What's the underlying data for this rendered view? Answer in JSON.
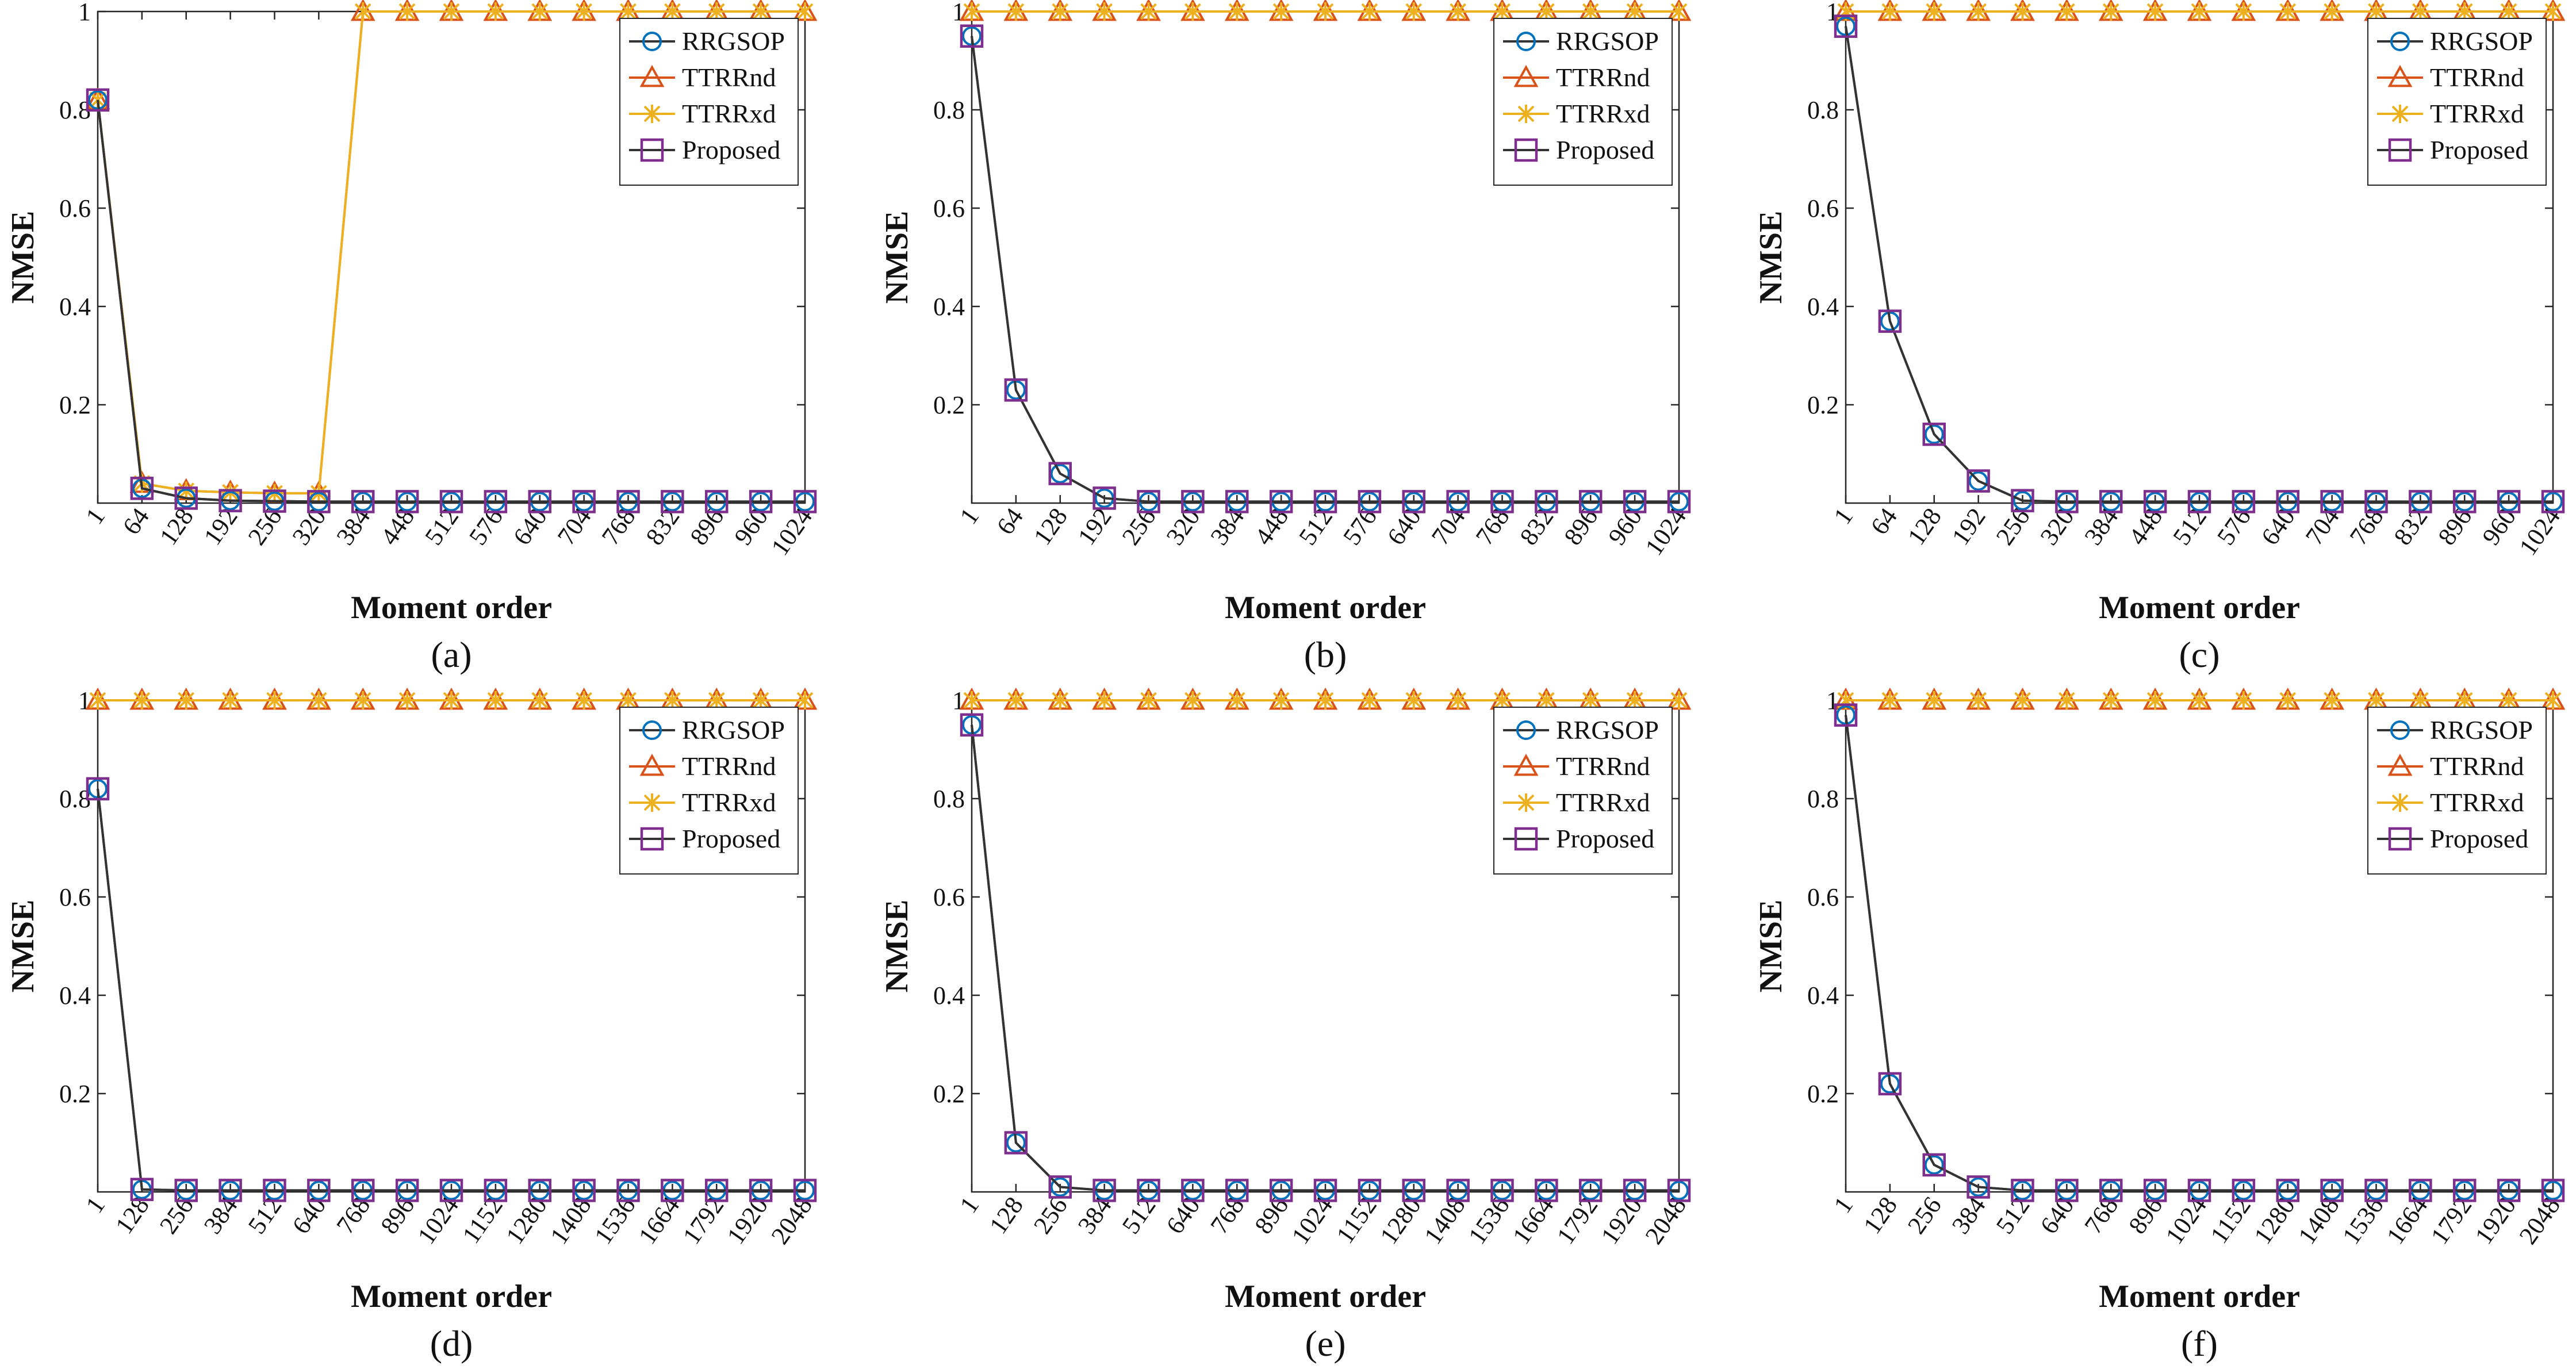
{
  "figure": {
    "series_styles": [
      {
        "name": "RRGSOP",
        "color": "#0072BD",
        "marker": "circle"
      },
      {
        "name": "TTRRnd",
        "color": "#D95319",
        "marker": "triangle"
      },
      {
        "name": "TTRRxd",
        "color": "#EDB120",
        "marker": "x"
      },
      {
        "name": "Proposed",
        "color": "#7E2F8E",
        "marker": "square"
      }
    ],
    "line_color": "#333333"
  },
  "chart_data": [
    {
      "panel_label": "(a)",
      "type": "line",
      "xlabel": "Moment order",
      "ylabel": "NMSE",
      "ylim": [
        0,
        1
      ],
      "yticks": [
        "0.2",
        "0.4",
        "0.6",
        "0.8",
        "1"
      ],
      "x": [
        "1",
        "64",
        "128",
        "192",
        "256",
        "320",
        "384",
        "448",
        "512",
        "576",
        "640",
        "704",
        "768",
        "832",
        "896",
        "960",
        "1024"
      ],
      "legend": "top-right",
      "series": [
        {
          "name": "RRGSOP",
          "values": [
            0.82,
            0.03,
            0.01,
            0.005,
            0.004,
            0.003,
            0.003,
            0.003,
            0.003,
            0.003,
            0.003,
            0.003,
            0.003,
            0.003,
            0.003,
            0.003,
            0.003
          ]
        },
        {
          "name": "TTRRnd",
          "values": [
            0.82,
            0.04,
            0.025,
            0.022,
            0.02,
            0.02,
            1,
            1,
            1,
            1,
            1,
            1,
            1,
            1,
            1,
            1,
            1
          ]
        },
        {
          "name": "TTRRxd",
          "values": [
            0.82,
            0.04,
            0.025,
            0.022,
            0.02,
            0.02,
            1,
            1,
            1,
            1,
            1,
            1,
            1,
            1,
            1,
            1,
            1
          ]
        },
        {
          "name": "Proposed",
          "values": [
            0.82,
            0.03,
            0.01,
            0.005,
            0.004,
            0.003,
            0.003,
            0.003,
            0.003,
            0.003,
            0.003,
            0.003,
            0.003,
            0.003,
            0.003,
            0.003,
            0.003
          ]
        }
      ]
    },
    {
      "panel_label": "(b)",
      "type": "line",
      "xlabel": "Moment order",
      "ylabel": "NMSE",
      "ylim": [
        0,
        1
      ],
      "yticks": [
        "0.2",
        "0.4",
        "0.6",
        "0.8",
        "1"
      ],
      "x": [
        "1",
        "64",
        "128",
        "192",
        "256",
        "320",
        "384",
        "448",
        "512",
        "576",
        "640",
        "704",
        "768",
        "832",
        "896",
        "960",
        "1024"
      ],
      "legend": "top-right",
      "series": [
        {
          "name": "RRGSOP",
          "values": [
            0.95,
            0.23,
            0.06,
            0.01,
            0.003,
            0.003,
            0.003,
            0.003,
            0.003,
            0.003,
            0.003,
            0.003,
            0.003,
            0.003,
            0.003,
            0.003,
            0.003
          ]
        },
        {
          "name": "TTRRnd",
          "values": [
            1,
            1,
            1,
            1,
            1,
            1,
            1,
            1,
            1,
            1,
            1,
            1,
            1,
            1,
            1,
            1,
            1
          ]
        },
        {
          "name": "TTRRxd",
          "values": [
            1,
            1,
            1,
            1,
            1,
            1,
            1,
            1,
            1,
            1,
            1,
            1,
            1,
            1,
            1,
            1,
            1
          ]
        },
        {
          "name": "Proposed",
          "values": [
            0.95,
            0.23,
            0.06,
            0.01,
            0.003,
            0.003,
            0.003,
            0.003,
            0.003,
            0.003,
            0.003,
            0.003,
            0.003,
            0.003,
            0.003,
            0.003,
            0.003
          ]
        }
      ]
    },
    {
      "panel_label": "(c)",
      "type": "line",
      "xlabel": "Moment order",
      "ylabel": "NMSE",
      "ylim": [
        0,
        1
      ],
      "yticks": [
        "0.2",
        "0.4",
        "0.6",
        "0.8",
        "1"
      ],
      "x": [
        "1",
        "64",
        "128",
        "192",
        "256",
        "320",
        "384",
        "448",
        "512",
        "576",
        "640",
        "704",
        "768",
        "832",
        "896",
        "960",
        "1024"
      ],
      "legend": "top-right",
      "series": [
        {
          "name": "RRGSOP",
          "values": [
            0.97,
            0.37,
            0.14,
            0.045,
            0.005,
            0.003,
            0.003,
            0.003,
            0.003,
            0.003,
            0.003,
            0.003,
            0.003,
            0.003,
            0.003,
            0.003,
            0.003
          ]
        },
        {
          "name": "TTRRnd",
          "values": [
            1,
            1,
            1,
            1,
            1,
            1,
            1,
            1,
            1,
            1,
            1,
            1,
            1,
            1,
            1,
            1,
            1
          ]
        },
        {
          "name": "TTRRxd",
          "values": [
            1,
            1,
            1,
            1,
            1,
            1,
            1,
            1,
            1,
            1,
            1,
            1,
            1,
            1,
            1,
            1,
            1
          ]
        },
        {
          "name": "Proposed",
          "values": [
            0.97,
            0.37,
            0.14,
            0.045,
            0.005,
            0.003,
            0.003,
            0.003,
            0.003,
            0.003,
            0.003,
            0.003,
            0.003,
            0.003,
            0.003,
            0.003,
            0.003
          ]
        }
      ]
    },
    {
      "panel_label": "(d)",
      "type": "line",
      "xlabel": "Moment order",
      "ylabel": "NMSE",
      "ylim": [
        0,
        1
      ],
      "yticks": [
        "0.2",
        "0.4",
        "0.6",
        "0.8",
        "1"
      ],
      "x": [
        "1",
        "128",
        "256",
        "384",
        "512",
        "640",
        "768",
        "896",
        "1024",
        "1152",
        "1280",
        "1408",
        "1536",
        "1664",
        "1792",
        "1920",
        "2048"
      ],
      "legend": "top-right",
      "series": [
        {
          "name": "RRGSOP",
          "values": [
            0.82,
            0.005,
            0.003,
            0.003,
            0.003,
            0.003,
            0.003,
            0.003,
            0.003,
            0.003,
            0.003,
            0.003,
            0.003,
            0.003,
            0.003,
            0.003,
            0.003
          ]
        },
        {
          "name": "TTRRnd",
          "values": [
            1,
            1,
            1,
            1,
            1,
            1,
            1,
            1,
            1,
            1,
            1,
            1,
            1,
            1,
            1,
            1,
            1
          ]
        },
        {
          "name": "TTRRxd",
          "values": [
            1,
            1,
            1,
            1,
            1,
            1,
            1,
            1,
            1,
            1,
            1,
            1,
            1,
            1,
            1,
            1,
            1
          ]
        },
        {
          "name": "Proposed",
          "values": [
            0.82,
            0.005,
            0.003,
            0.003,
            0.003,
            0.003,
            0.003,
            0.003,
            0.003,
            0.003,
            0.003,
            0.003,
            0.003,
            0.003,
            0.003,
            0.003,
            0.003
          ]
        }
      ]
    },
    {
      "panel_label": "(e)",
      "type": "line",
      "xlabel": "Moment order",
      "ylabel": "NMSE",
      "ylim": [
        0,
        1
      ],
      "yticks": [
        "0.2",
        "0.4",
        "0.6",
        "0.8",
        "1"
      ],
      "x": [
        "1",
        "128",
        "256",
        "384",
        "512",
        "640",
        "768",
        "896",
        "1024",
        "1152",
        "1280",
        "1408",
        "1536",
        "1664",
        "1792",
        "1920",
        "2048"
      ],
      "legend": "top-right",
      "series": [
        {
          "name": "RRGSOP",
          "values": [
            0.95,
            0.1,
            0.01,
            0.003,
            0.003,
            0.003,
            0.003,
            0.003,
            0.003,
            0.003,
            0.003,
            0.003,
            0.003,
            0.003,
            0.003,
            0.003,
            0.003
          ]
        },
        {
          "name": "TTRRnd",
          "values": [
            1,
            1,
            1,
            1,
            1,
            1,
            1,
            1,
            1,
            1,
            1,
            1,
            1,
            1,
            1,
            1,
            1
          ]
        },
        {
          "name": "TTRRxd",
          "values": [
            1,
            1,
            1,
            1,
            1,
            1,
            1,
            1,
            1,
            1,
            1,
            1,
            1,
            1,
            1,
            1,
            1
          ]
        },
        {
          "name": "Proposed",
          "values": [
            0.95,
            0.1,
            0.01,
            0.003,
            0.003,
            0.003,
            0.003,
            0.003,
            0.003,
            0.003,
            0.003,
            0.003,
            0.003,
            0.003,
            0.003,
            0.003,
            0.003
          ]
        }
      ]
    },
    {
      "panel_label": "(f)",
      "type": "line",
      "xlabel": "Moment order",
      "ylabel": "NMSE",
      "ylim": [
        0,
        1
      ],
      "yticks": [
        "0.2",
        "0.4",
        "0.6",
        "0.8",
        "1"
      ],
      "x": [
        "1",
        "128",
        "256",
        "384",
        "512",
        "640",
        "768",
        "896",
        "1024",
        "1152",
        "1280",
        "1408",
        "1536",
        "1664",
        "1792",
        "1920",
        "2048"
      ],
      "legend": "top-right",
      "series": [
        {
          "name": "RRGSOP",
          "values": [
            0.97,
            0.22,
            0.055,
            0.01,
            0.003,
            0.003,
            0.003,
            0.003,
            0.003,
            0.003,
            0.003,
            0.003,
            0.003,
            0.003,
            0.003,
            0.003,
            0.003
          ]
        },
        {
          "name": "TTRRnd",
          "values": [
            1,
            1,
            1,
            1,
            1,
            1,
            1,
            1,
            1,
            1,
            1,
            1,
            1,
            1,
            1,
            1,
            1
          ]
        },
        {
          "name": "TTRRxd",
          "values": [
            1,
            1,
            1,
            1,
            1,
            1,
            1,
            1,
            1,
            1,
            1,
            1,
            1,
            1,
            1,
            1,
            1
          ]
        },
        {
          "name": "Proposed",
          "values": [
            0.97,
            0.22,
            0.055,
            0.01,
            0.003,
            0.003,
            0.003,
            0.003,
            0.003,
            0.003,
            0.003,
            0.003,
            0.003,
            0.003,
            0.003,
            0.003,
            0.003
          ]
        }
      ]
    }
  ]
}
